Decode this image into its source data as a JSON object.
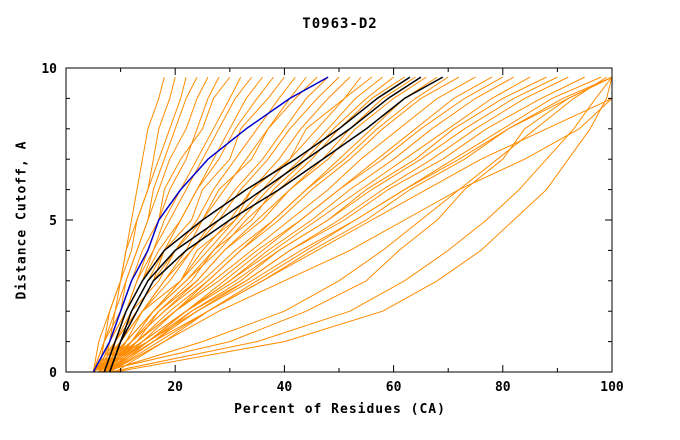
{
  "chart_data": {
    "type": "line",
    "title": "T0963-D2",
    "xlabel": "Percent of Residues (CA)",
    "ylabel": "Distance Cutoff, A",
    "xlim": [
      0,
      100
    ],
    "ylim": [
      0,
      10
    ],
    "x_major_ticks": [
      0,
      20,
      40,
      60,
      80,
      100
    ],
    "x_minor_ticks": [
      10,
      30,
      50,
      70,
      90
    ],
    "y_major_ticks": [
      0,
      5,
      10
    ],
    "y_minor_ticks": [
      1,
      2,
      3,
      4,
      6,
      7,
      8,
      9
    ],
    "grid": false,
    "legend": "none",
    "colors": {
      "models": "#ff8c00",
      "highlighted": "#000000",
      "reference": "#0000cd",
      "axis": "#000000",
      "background": "#ffffff"
    },
    "y_levels": [
      0,
      1,
      2,
      3,
      4,
      5,
      6,
      7,
      8,
      9,
      9.7
    ],
    "series_groups": [
      {
        "name": "models",
        "color": "#ff8c00",
        "width": 1,
        "curves": [
          [
            5,
            7,
            8,
            10,
            11,
            12,
            13,
            14,
            15,
            17,
            18
          ],
          [
            6,
            7,
            9,
            10,
            12,
            13,
            15,
            16,
            17,
            19,
            20
          ],
          [
            5,
            6,
            8,
            10,
            11,
            13,
            15,
            17,
            19,
            21,
            22
          ],
          [
            7,
            8,
            9,
            11,
            13,
            15,
            16,
            18,
            20,
            22,
            24
          ],
          [
            6,
            8,
            10,
            11,
            13,
            15,
            17,
            19,
            22,
            24,
            26
          ],
          [
            8,
            9,
            11,
            13,
            15,
            17,
            19,
            22,
            24,
            26,
            28
          ],
          [
            5,
            7,
            10,
            12,
            14,
            17,
            18,
            21,
            25,
            27,
            30
          ],
          [
            7,
            9,
            11,
            13,
            16,
            18,
            21,
            24,
            27,
            30,
            32
          ],
          [
            6,
            8,
            11,
            14,
            16,
            19,
            22,
            25,
            28,
            31,
            34
          ],
          [
            8,
            10,
            12,
            15,
            18,
            21,
            24,
            27,
            30,
            33,
            36
          ],
          [
            5,
            8,
            11,
            14,
            17,
            21,
            24,
            28,
            31,
            35,
            38
          ],
          [
            7,
            9,
            13,
            16,
            18,
            23,
            25,
            30,
            32,
            37,
            40
          ],
          [
            6,
            9,
            13,
            16,
            20,
            24,
            27,
            31,
            35,
            39,
            42
          ],
          [
            8,
            11,
            14,
            18,
            22,
            25,
            29,
            33,
            37,
            41,
            44
          ],
          [
            5,
            9,
            12,
            17,
            20,
            25,
            28,
            34,
            37,
            42,
            46
          ],
          [
            7,
            10,
            14,
            18,
            23,
            27,
            31,
            36,
            40,
            44,
            48
          ],
          [
            6,
            10,
            14,
            19,
            23,
            28,
            32,
            37,
            41,
            46,
            50
          ],
          [
            8,
            12,
            16,
            21,
            25,
            30,
            34,
            39,
            43,
            48,
            52
          ],
          [
            5,
            10,
            14,
            21,
            24,
            31,
            34,
            41,
            44,
            51,
            54
          ],
          [
            7,
            11,
            16,
            21,
            26,
            31,
            36,
            41,
            46,
            51,
            56
          ],
          [
            6,
            11,
            16,
            22,
            27,
            32,
            37,
            43,
            48,
            53,
            58
          ],
          [
            8,
            13,
            17,
            23,
            27,
            34,
            38,
            44,
            49,
            55,
            60
          ],
          [
            5,
            11,
            16,
            22,
            28,
            33,
            39,
            45,
            50,
            56,
            62
          ],
          [
            7,
            12,
            18,
            24,
            29,
            35,
            41,
            47,
            52,
            58,
            64
          ],
          [
            6,
            12,
            17,
            24,
            29,
            36,
            41,
            48,
            53,
            60,
            66
          ],
          [
            8,
            14,
            20,
            26,
            32,
            38,
            44,
            50,
            56,
            62,
            68
          ],
          [
            5,
            12,
            18,
            25,
            31,
            38,
            44,
            51,
            57,
            64,
            70
          ],
          [
            7,
            13,
            19,
            26,
            32,
            39,
            45,
            52,
            58,
            65,
            72
          ],
          [
            6,
            13,
            20,
            27,
            34,
            41,
            48,
            54,
            61,
            68,
            75
          ],
          [
            8,
            15,
            22,
            29,
            36,
            43,
            50,
            57,
            64,
            71,
            78
          ],
          [
            5,
            13,
            20,
            28,
            35,
            43,
            50,
            58,
            65,
            73,
            80
          ],
          [
            7,
            15,
            22,
            30,
            37,
            45,
            52,
            60,
            67,
            75,
            82
          ],
          [
            6,
            14,
            22,
            30,
            38,
            46,
            54,
            62,
            70,
            78,
            85
          ],
          [
            8,
            16,
            23,
            32,
            39,
            48,
            55,
            64,
            71,
            80,
            88
          ],
          [
            5,
            14,
            22,
            31,
            39,
            48,
            56,
            65,
            73,
            82,
            90
          ],
          [
            7,
            16,
            24,
            33,
            41,
            50,
            58,
            67,
            75,
            84,
            92
          ],
          [
            6,
            15,
            23,
            33,
            41,
            51,
            59,
            69,
            77,
            87,
            95
          ],
          [
            8,
            17,
            26,
            35,
            44,
            53,
            62,
            71,
            80,
            89,
            98
          ],
          [
            5,
            15,
            24,
            34,
            43,
            53,
            62,
            72,
            81,
            91,
            100
          ],
          [
            9,
            18,
            26,
            36,
            45,
            55,
            63,
            73,
            81,
            92,
            100
          ],
          [
            7,
            16,
            26,
            36,
            46,
            56,
            66,
            76,
            88,
            100,
            100
          ],
          [
            8,
            18,
            28,
            40,
            52,
            62,
            72,
            84,
            94,
            100,
            100
          ],
          [
            6,
            30,
            44,
            55,
            61,
            68,
            73,
            80,
            84,
            92,
            100
          ],
          [
            8,
            35,
            52,
            62,
            70,
            77,
            83,
            88,
            93,
            97,
            100
          ],
          [
            7,
            25,
            40,
            50,
            58,
            65,
            72,
            79,
            86,
            93,
            99
          ],
          [
            9,
            40,
            58,
            68,
            76,
            82,
            88,
            92,
            96,
            99,
            100
          ]
        ]
      },
      {
        "name": "highlighted-models",
        "color": "#000000",
        "width": 1.5,
        "curves": [
          [
            7,
            9,
            11,
            14,
            18,
            25,
            33,
            42,
            50,
            57,
            63
          ],
          [
            8,
            10,
            12,
            15,
            20,
            28,
            36,
            44,
            52,
            59,
            65
          ],
          [
            8,
            10,
            13,
            16,
            22,
            30,
            39,
            47,
            55,
            62,
            69
          ]
        ]
      },
      {
        "name": "reference",
        "color": "#0000cd",
        "width": 1.5,
        "curves": [
          [
            5,
            8,
            10,
            12,
            15,
            17,
            21,
            26,
            33,
            41,
            48
          ]
        ]
      }
    ]
  }
}
